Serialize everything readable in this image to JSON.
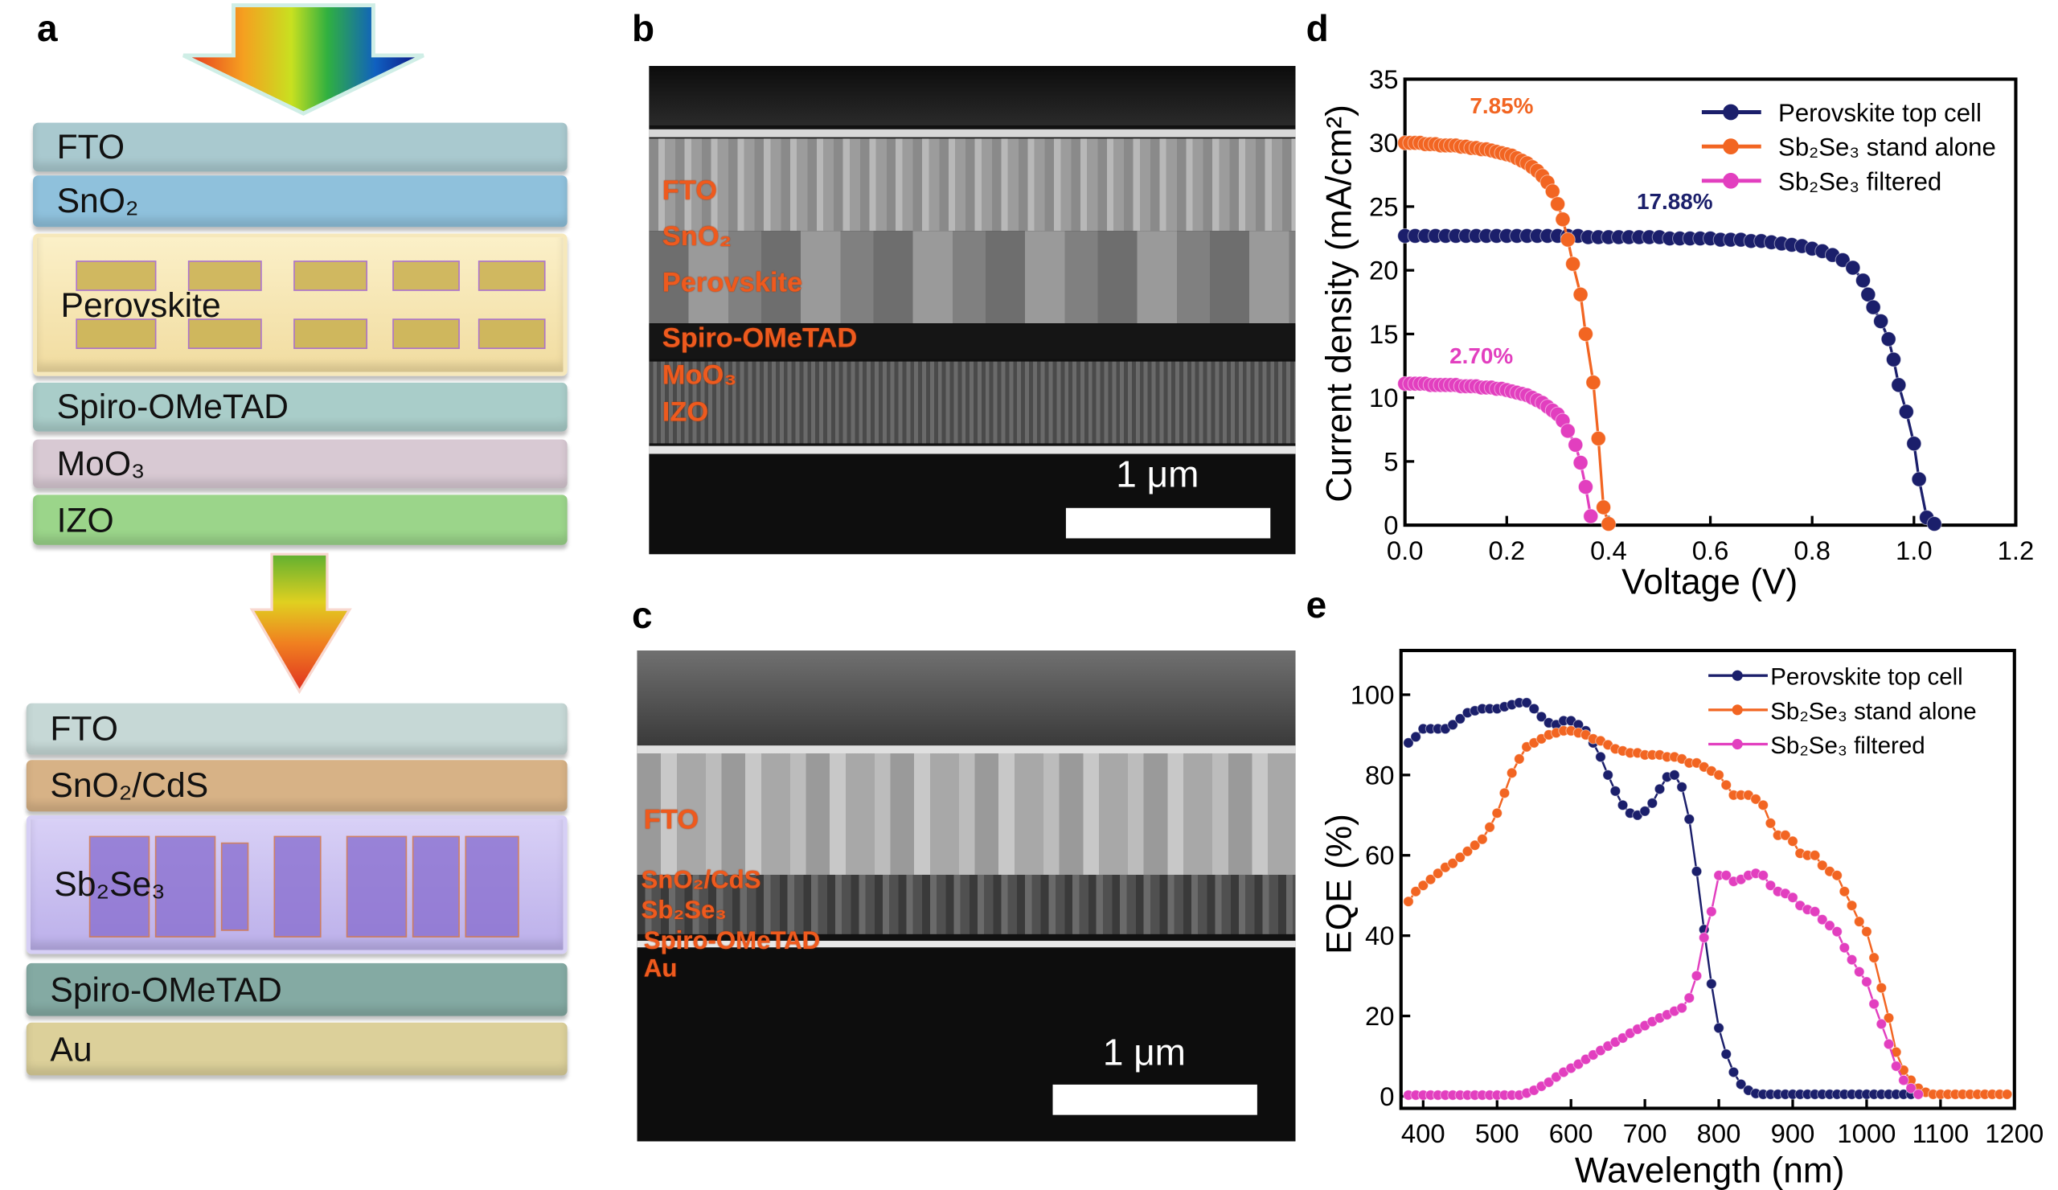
{
  "panel_labels": {
    "a": "a",
    "b": "b",
    "c": "c",
    "d": "d",
    "e": "e"
  },
  "panel_a": {
    "top_stack": [
      "FTO",
      "SnO₂",
      "Perovskite",
      "Spiro-OMeTAD",
      "MoO₃",
      "IZO"
    ],
    "bottom_stack": [
      "FTO",
      "SnO₂/CdS",
      "Sb₂Se₃",
      "Spiro-OMeTAD",
      "Au"
    ],
    "layer_colors": {
      "FTO": "#a9c9cf",
      "SnO2": "#8fc1dc",
      "Perovskite": "#f3e2a6",
      "Spiro": "#a9cdc9",
      "MoO3": "#d8c9d3",
      "IZO": "#9bd58a",
      "FTO2": "#c6d8d6",
      "SnO2CdS": "#d7b286",
      "Sb2Se3": "#c7bdf0",
      "Spiro2": "#84aaa3",
      "Au": "#dcd09a"
    }
  },
  "panel_b": {
    "labels": [
      "FTO",
      "SnO₂",
      "Perovskite",
      "Spiro-OMeTAD",
      "MoO₃",
      "IZO"
    ],
    "scale_bar": "1 μm"
  },
  "panel_c": {
    "labels": [
      "FTO",
      "SnO₂/CdS",
      "Sb₂Se₃",
      "Spiro-OMeTAD",
      "Au"
    ],
    "scale_bar": "1 μm"
  },
  "chart_data": [
    {
      "type": "line",
      "xlabel": "Voltage (V)",
      "ylabel": "Current density (mA/cm²)",
      "xlim": [
        0,
        1.2
      ],
      "ylim": [
        0,
        35
      ],
      "xticks": [
        "0.0",
        "0.2",
        "0.4",
        "0.6",
        "0.8",
        "1.0",
        "1.2"
      ],
      "yticks": [
        "0",
        "5",
        "10",
        "15",
        "20",
        "25",
        "30",
        "35"
      ],
      "legend": "top-right",
      "annotations": [
        {
          "text": "7.85%",
          "color": "#f26522",
          "x": 0.19,
          "y": 32.3
        },
        {
          "text": "17.88%",
          "color": "#1b1f6b",
          "x": 0.53,
          "y": 24.8
        },
        {
          "text": "2.70%",
          "color": "#e23fbf",
          "x": 0.15,
          "y": 12.7
        }
      ],
      "series": [
        {
          "name": "Perovskite top cell",
          "color": "#1b1f6b",
          "x": [
            0,
            0.02,
            0.04,
            0.06,
            0.08,
            0.1,
            0.12,
            0.14,
            0.16,
            0.18,
            0.2,
            0.22,
            0.24,
            0.26,
            0.28,
            0.3,
            0.32,
            0.34,
            0.36,
            0.38,
            0.4,
            0.42,
            0.44,
            0.46,
            0.48,
            0.5,
            0.52,
            0.54,
            0.56,
            0.58,
            0.6,
            0.62,
            0.64,
            0.66,
            0.68,
            0.7,
            0.72,
            0.74,
            0.76,
            0.78,
            0.8,
            0.82,
            0.84,
            0.86,
            0.88,
            0.9,
            0.91,
            0.92,
            0.935,
            0.95,
            0.96,
            0.97,
            0.985,
            1.0,
            1.01,
            1.025,
            1.04
          ],
          "y": [
            22.7,
            22.7,
            22.7,
            22.7,
            22.7,
            22.7,
            22.7,
            22.7,
            22.7,
            22.7,
            22.7,
            22.7,
            22.7,
            22.7,
            22.7,
            22.7,
            22.7,
            22.7,
            22.6,
            22.6,
            22.6,
            22.6,
            22.6,
            22.6,
            22.6,
            22.6,
            22.5,
            22.5,
            22.5,
            22.5,
            22.5,
            22.4,
            22.4,
            22.4,
            22.3,
            22.3,
            22.2,
            22.1,
            22.0,
            21.9,
            21.7,
            21.5,
            21.2,
            20.8,
            20.2,
            19.2,
            18.1,
            17.1,
            16.0,
            14.6,
            13.0,
            11.0,
            8.9,
            6.4,
            3.6,
            0.6,
            0.1
          ]
        },
        {
          "name": "Sb₂Se₃ stand alone",
          "color": "#f26522",
          "x": [
            0,
            0.01,
            0.02,
            0.03,
            0.04,
            0.05,
            0.06,
            0.07,
            0.08,
            0.09,
            0.1,
            0.11,
            0.12,
            0.13,
            0.14,
            0.15,
            0.16,
            0.17,
            0.18,
            0.19,
            0.2,
            0.21,
            0.22,
            0.23,
            0.24,
            0.25,
            0.26,
            0.27,
            0.28,
            0.29,
            0.3,
            0.31,
            0.32,
            0.33,
            0.345,
            0.355,
            0.37,
            0.38,
            0.39,
            0.4
          ],
          "y": [
            30.0,
            30.0,
            30.0,
            30.0,
            29.9,
            29.9,
            29.9,
            29.8,
            29.8,
            29.8,
            29.8,
            29.7,
            29.7,
            29.6,
            29.6,
            29.5,
            29.5,
            29.4,
            29.3,
            29.2,
            29.1,
            29.0,
            28.8,
            28.6,
            28.4,
            28.1,
            27.8,
            27.4,
            26.9,
            26.2,
            25.2,
            24.0,
            22.4,
            20.5,
            18.1,
            15.0,
            11.2,
            6.8,
            1.4,
            0.1
          ]
        },
        {
          "name": "Sb₂Se₃ filtered",
          "color": "#e23fbf",
          "x": [
            0,
            0.01,
            0.02,
            0.03,
            0.04,
            0.05,
            0.06,
            0.07,
            0.08,
            0.09,
            0.1,
            0.11,
            0.12,
            0.13,
            0.14,
            0.15,
            0.16,
            0.17,
            0.18,
            0.19,
            0.2,
            0.21,
            0.22,
            0.23,
            0.24,
            0.25,
            0.26,
            0.27,
            0.28,
            0.29,
            0.3,
            0.31,
            0.32,
            0.335,
            0.345,
            0.355,
            0.365
          ],
          "y": [
            11.1,
            11.1,
            11.1,
            11.1,
            11.1,
            11.0,
            11.0,
            11.0,
            11.0,
            11.0,
            11.0,
            10.9,
            10.9,
            10.9,
            10.9,
            10.8,
            10.8,
            10.8,
            10.7,
            10.7,
            10.6,
            10.5,
            10.4,
            10.3,
            10.2,
            10.0,
            9.8,
            9.6,
            9.3,
            9.0,
            8.7,
            8.2,
            7.4,
            6.3,
            4.9,
            3.0,
            0.7
          ]
        }
      ]
    },
    {
      "type": "line",
      "xlabel": "Wavelength (nm)",
      "ylabel": "EQE (%)",
      "xlim": [
        370,
        1200
      ],
      "ylim": [
        -3,
        111
      ],
      "xticks": [
        "400",
        "500",
        "600",
        "700",
        "800",
        "900",
        "1000",
        "1100",
        "1200"
      ],
      "yticks": [
        "0",
        "20",
        "40",
        "60",
        "80",
        "100"
      ],
      "legend": "top-right",
      "series": [
        {
          "name": "Perovskite top cell",
          "color": "#1b1f6b",
          "x": [
            380,
            390,
            400,
            410,
            420,
            430,
            440,
            450,
            460,
            470,
            480,
            490,
            500,
            510,
            520,
            530,
            540,
            550,
            560,
            570,
            580,
            590,
            600,
            610,
            620,
            630,
            640,
            650,
            660,
            670,
            680,
            690,
            700,
            710,
            720,
            730,
            740,
            750,
            760,
            770,
            780,
            790,
            800,
            810,
            820,
            830,
            840,
            850,
            860,
            870,
            880,
            890,
            900,
            910,
            920,
            930,
            940,
            950,
            960,
            970,
            980,
            990,
            1000,
            1010,
            1020,
            1030,
            1040,
            1050,
            1060,
            1070
          ],
          "y": [
            88,
            89.5,
            91.5,
            91.5,
            91.5,
            91.5,
            92.5,
            94,
            95.5,
            96,
            96.5,
            96.5,
            96.5,
            97,
            97.5,
            98,
            98,
            96.5,
            94.5,
            93,
            92.5,
            93.5,
            93.5,
            92.5,
            91,
            88,
            84.5,
            80,
            76,
            72.5,
            70.5,
            70,
            71,
            73,
            76.5,
            79.5,
            80,
            77,
            69,
            56,
            41.5,
            28,
            17,
            10.5,
            6,
            3,
            1.5,
            0.7,
            0.5,
            0.5,
            0.5,
            0.5,
            0.5,
            0.5,
            0.5,
            0.5,
            0.5,
            0.5,
            0.5,
            0.5,
            0.5,
            0.5,
            0.5,
            0.5,
            0.5,
            0.5,
            0.5,
            0.5,
            0.5,
            0.5
          ]
        },
        {
          "name": "Sb₂Se₃ stand alone",
          "color": "#f26522",
          "x": [
            380,
            390,
            400,
            410,
            420,
            430,
            440,
            450,
            460,
            470,
            480,
            490,
            500,
            510,
            520,
            530,
            540,
            550,
            560,
            570,
            580,
            590,
            600,
            610,
            620,
            630,
            640,
            650,
            660,
            670,
            680,
            690,
            700,
            710,
            720,
            730,
            740,
            750,
            760,
            770,
            780,
            790,
            800,
            810,
            820,
            830,
            840,
            850,
            860,
            870,
            880,
            890,
            900,
            910,
            920,
            930,
            940,
            950,
            960,
            970,
            980,
            990,
            1000,
            1010,
            1020,
            1030,
            1040,
            1050,
            1060,
            1070,
            1080,
            1090,
            1100,
            1110,
            1120,
            1130,
            1140,
            1150,
            1160,
            1170,
            1180,
            1190
          ],
          "y": [
            48.5,
            51,
            52.5,
            54,
            55.5,
            57,
            58,
            59.5,
            61,
            62.5,
            64,
            67,
            70.5,
            75.5,
            80.5,
            84,
            87,
            88,
            89,
            90,
            90.5,
            91,
            91,
            90.5,
            90,
            89,
            88.5,
            87.5,
            86.5,
            86,
            85.5,
            85.5,
            85,
            85,
            85,
            84.5,
            84.5,
            84,
            83,
            83,
            82,
            81,
            80,
            77.5,
            75,
            75,
            75,
            74,
            72.5,
            68,
            65,
            65,
            63.5,
            60.5,
            60,
            60,
            57.5,
            56,
            55,
            51,
            47.5,
            43.5,
            41,
            34.5,
            27,
            19.5,
            11,
            6.5,
            4,
            2,
            1,
            0.5,
            0.5,
            0.5,
            0.5,
            0.5,
            0.5,
            0.5,
            0.5,
            0.5,
            0.5,
            0.5
          ]
        },
        {
          "name": "Sb₂Se₃ filtered",
          "color": "#e23fbf",
          "x": [
            380,
            390,
            400,
            410,
            420,
            430,
            440,
            450,
            460,
            470,
            480,
            490,
            500,
            510,
            520,
            530,
            540,
            550,
            560,
            570,
            580,
            590,
            600,
            610,
            620,
            630,
            640,
            650,
            660,
            670,
            680,
            690,
            700,
            710,
            720,
            730,
            740,
            750,
            760,
            770,
            780,
            790,
            800,
            810,
            820,
            830,
            840,
            850,
            860,
            870,
            880,
            890,
            900,
            910,
            920,
            930,
            940,
            950,
            960,
            970,
            980,
            990,
            1000,
            1010,
            1020,
            1030,
            1040,
            1050,
            1060,
            1070
          ],
          "y": [
            0.3,
            0.3,
            0.3,
            0.3,
            0.3,
            0.3,
            0.3,
            0.3,
            0.3,
            0.3,
            0.3,
            0.3,
            0.3,
            0.3,
            0.3,
            0.3,
            0.8,
            1.5,
            2.5,
            3.5,
            4.8,
            6,
            7,
            8,
            9.2,
            10.3,
            11.4,
            12.5,
            13.5,
            14.5,
            15.7,
            16.7,
            17.6,
            18.6,
            19.5,
            20.3,
            21.2,
            22,
            24.5,
            30,
            39.5,
            46,
            55,
            55,
            53.5,
            54,
            55,
            55.5,
            55,
            52.5,
            51,
            50.5,
            49.5,
            47.5,
            46.5,
            46,
            44,
            42.5,
            41,
            37,
            34,
            31,
            28.5,
            23,
            18,
            13,
            7.5,
            4,
            2,
            0.5
          ]
        }
      ]
    }
  ]
}
